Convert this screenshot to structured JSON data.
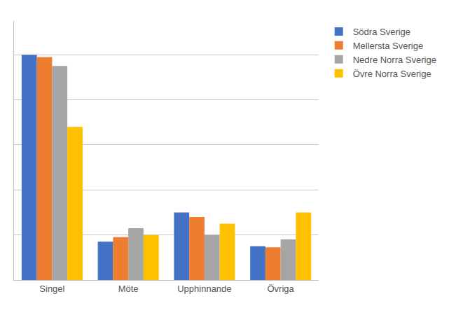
{
  "chart_data": {
    "type": "bar",
    "categories": [
      "Singel",
      "Möte",
      "Upphinnande",
      "Övriga"
    ],
    "series": [
      {
        "name": "Södra Sverige",
        "color": "#4472C4",
        "values": [
          100,
          17,
          30,
          15
        ]
      },
      {
        "name": "Mellersta Sverige",
        "color": "#ED7D31",
        "values": [
          99,
          19,
          28,
          14.5
        ]
      },
      {
        "name": "Nedre Norra Sverige",
        "color": "#A5A5A5",
        "values": [
          95,
          23,
          20,
          18
        ]
      },
      {
        "name": "Övre Norra Sverige",
        "color": "#FFC000",
        "values": [
          68,
          20,
          25,
          30
        ]
      }
    ],
    "ylim": [
      0,
      115
    ],
    "yticks": [
      0,
      20,
      40,
      60,
      80,
      100
    ],
    "grid": true,
    "legend": "upper right",
    "tick_labels": "x"
  }
}
